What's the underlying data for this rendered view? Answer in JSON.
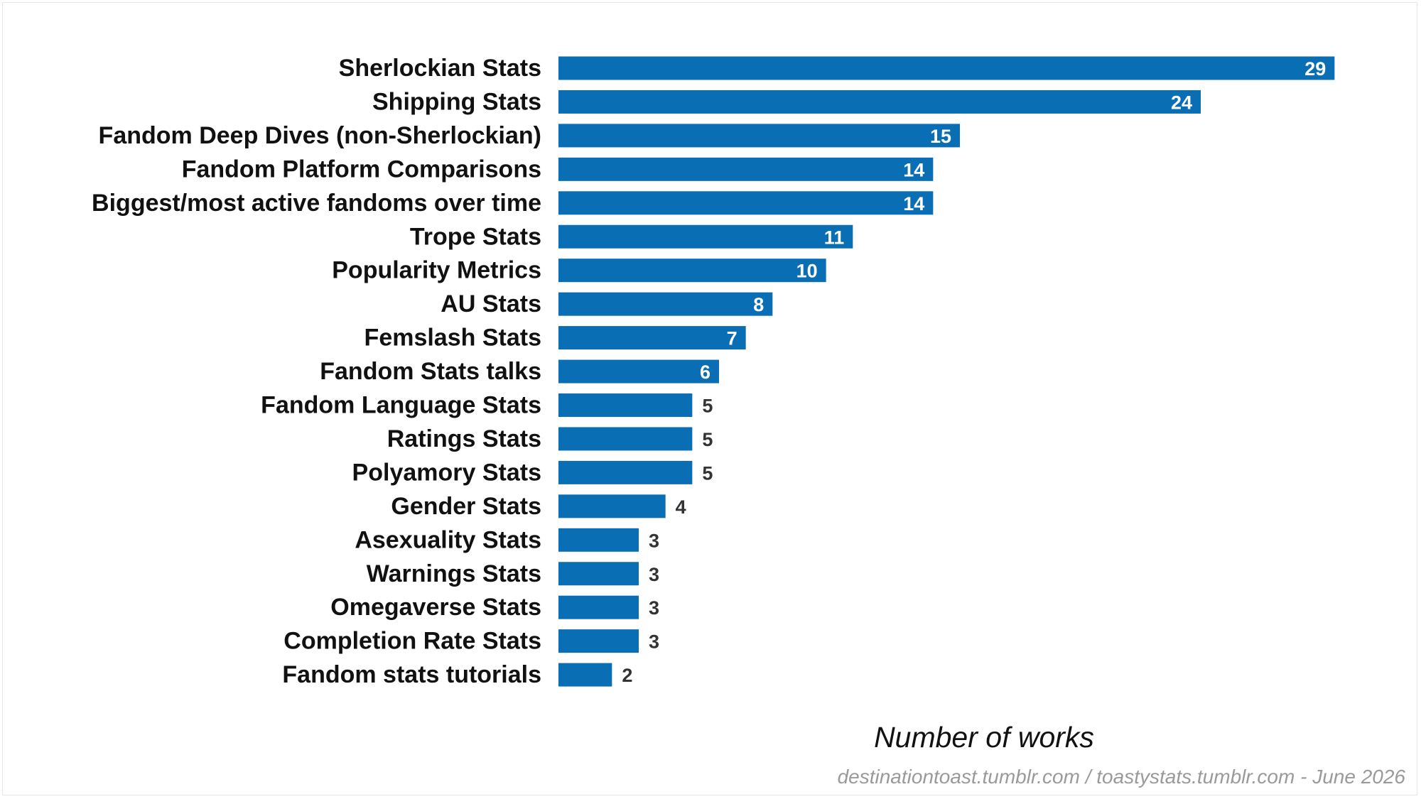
{
  "chart_data": {
    "type": "bar",
    "orientation": "horizontal",
    "categories": [
      "Sherlockian Stats",
      "Shipping Stats",
      "Fandom Deep Dives (non-Sherlockian)",
      "Fandom Platform Comparisons",
      "Biggest/most active fandoms over time",
      "Trope Stats",
      "Popularity Metrics",
      "AU Stats",
      "Femslash Stats",
      "Fandom Stats talks",
      "Fandom Language Stats",
      "Ratings Stats",
      "Polyamory Stats",
      "Gender Stats",
      "Asexuality Stats",
      "Warnings Stats",
      "Omegaverse Stats",
      "Completion Rate Stats",
      "Fandom stats tutorials"
    ],
    "values": [
      29,
      24,
      15,
      14,
      14,
      11,
      10,
      8,
      7,
      6,
      5,
      5,
      5,
      4,
      3,
      3,
      3,
      3,
      2
    ],
    "xlabel": "Number of works",
    "ylabel": "",
    "xlim": [
      0,
      30
    ],
    "grid": false,
    "legend": "none",
    "bar_color": "#0a6eb4",
    "data_labels": true
  },
  "footer": {
    "credit": "destinationtoast.tumblr.com / toastystats.tumblr.com - June 2026"
  }
}
